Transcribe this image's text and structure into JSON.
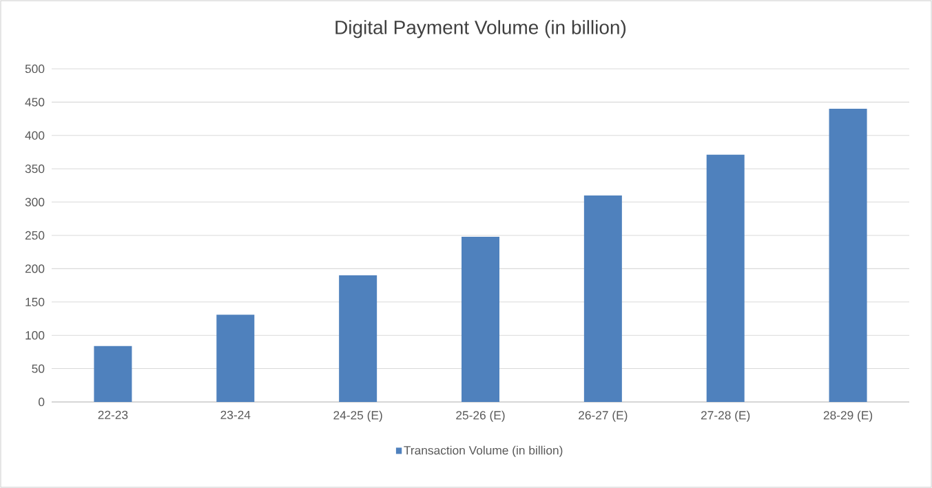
{
  "chart_data": {
    "type": "bar",
    "title": "Digital Payment Volume (in billion)",
    "categories": [
      "22-23",
      "23-24",
      "24-25 (E)",
      "25-26 (E)",
      "26-27 (E)",
      "27-28 (E)",
      "28-29 (E)"
    ],
    "series": [
      {
        "name": "Transaction Volume (in billion)",
        "color": "#4f81bd",
        "values": [
          84,
          131,
          190,
          248,
          310,
          371,
          440
        ]
      }
    ],
    "ylim": [
      0,
      500
    ],
    "yticks": [
      0,
      50,
      100,
      150,
      200,
      250,
      300,
      350,
      400,
      450,
      500
    ],
    "grid": "y",
    "legend": "bottom"
  }
}
